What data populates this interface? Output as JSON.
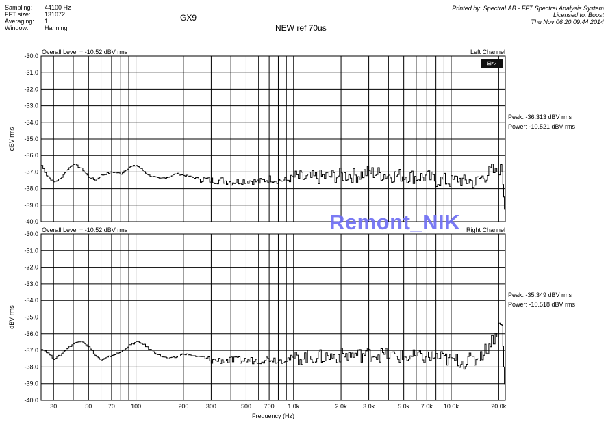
{
  "header": {
    "info": [
      {
        "label": "Sampling:",
        "value": "44100 Hz"
      },
      {
        "label": "FFT size:",
        "value": "131072"
      },
      {
        "label": "Averaging:",
        "value": "1"
      },
      {
        "label": "Window:",
        "value": "Hanning"
      }
    ],
    "title": "GX9",
    "subtitle": "NEW ref 70us",
    "printed_by": "Printed by: SpectraLAB - FFT Spectral Analysis System",
    "licensed_to": "Licensed to: Boost",
    "timestamp": "Thu Nov 06 20:09:44 2014"
  },
  "watermark": "Remont_NIK",
  "legend_icon": "spectrum-analyzer-icon",
  "chart_data": [
    {
      "type": "line",
      "channel_label": "Left Channel",
      "overall_level": "Overall Level = -10.52 dBV rms",
      "peak": "Peak: -36.313 dBV rms",
      "power": "Power: -10.521 dBV rms",
      "xlabel": "Frequency (Hz)",
      "ylabel": "dBV rms",
      "xscale": "log",
      "xlim": [
        25,
        22050
      ],
      "ylim": [
        -40,
        -30
      ],
      "grid": true,
      "yticks": [
        "-30.0",
        "-31.0",
        "-32.0",
        "-33.0",
        "-34.0",
        "-35.0",
        "-36.0",
        "-37.0",
        "-38.0",
        "-39.0",
        "-40.0"
      ],
      "x": [
        25,
        27,
        30,
        33,
        36,
        40,
        45,
        50,
        55,
        60,
        70,
        80,
        90,
        100,
        110,
        120,
        140,
        160,
        180,
        200,
        250,
        300,
        350,
        400,
        500,
        600,
        700,
        800,
        900,
        1000,
        1200,
        1500,
        2000,
        2500,
        3000,
        4000,
        5000,
        6000,
        7000,
        8000,
        9000,
        10000,
        11000,
        12000,
        13000,
        14000,
        15000,
        16000,
        17000,
        18000,
        19000,
        20000,
        21000,
        21500,
        22000
      ],
      "y": [
        -36.6,
        -37.2,
        -37.6,
        -37.4,
        -36.9,
        -36.5,
        -36.8,
        -37.3,
        -37.5,
        -37.2,
        -37.0,
        -37.1,
        -36.7,
        -36.6,
        -36.9,
        -37.2,
        -37.4,
        -37.3,
        -37.1,
        -37.2,
        -37.4,
        -37.5,
        -37.5,
        -37.6,
        -37.5,
        -37.6,
        -37.4,
        -37.5,
        -37.5,
        -37.3,
        -37.4,
        -37.3,
        -37.2,
        -37.2,
        -37.0,
        -37.2,
        -37.2,
        -37.3,
        -37.3,
        -37.5,
        -37.5,
        -37.6,
        -37.4,
        -37.6,
        -37.5,
        -37.7,
        -37.4,
        -37.3,
        -37.1,
        -36.9,
        -37.1,
        -36.8,
        -37.0,
        -38.5,
        -40.0
      ]
    },
    {
      "type": "line",
      "channel_label": "Right Channel",
      "overall_level": "Overall Level = -10.52 dBV rms",
      "peak": "Peak: -35.349 dBV rms",
      "power": "Power: -10.518 dBV rms",
      "xlabel": "Frequency (Hz)",
      "ylabel": "dBV rms",
      "xscale": "log",
      "xlim": [
        25,
        22050
      ],
      "ylim": [
        -40,
        -30
      ],
      "grid": true,
      "yticks": [
        "-30.0",
        "-31.0",
        "-32.0",
        "-33.0",
        "-34.0",
        "-35.0",
        "-36.0",
        "-37.0",
        "-38.0",
        "-39.0",
        "-40.0"
      ],
      "x": [
        25,
        27,
        30,
        33,
        36,
        40,
        45,
        50,
        55,
        60,
        70,
        80,
        90,
        100,
        110,
        120,
        140,
        160,
        180,
        200,
        250,
        300,
        350,
        400,
        500,
        600,
        700,
        800,
        900,
        1000,
        1200,
        1500,
        2000,
        2500,
        3000,
        4000,
        5000,
        6000,
        7000,
        8000,
        9000,
        10000,
        11000,
        12000,
        13000,
        14000,
        15000,
        16000,
        17000,
        18000,
        19000,
        20000,
        21000,
        21500,
        22000
      ],
      "y": [
        -36.9,
        -37.1,
        -37.5,
        -37.3,
        -36.9,
        -36.6,
        -36.4,
        -36.8,
        -37.3,
        -37.6,
        -37.3,
        -37.1,
        -36.7,
        -36.5,
        -36.6,
        -36.9,
        -37.3,
        -37.5,
        -37.4,
        -37.2,
        -37.4,
        -37.6,
        -37.6,
        -37.6,
        -37.6,
        -37.6,
        -37.5,
        -37.6,
        -37.5,
        -37.5,
        -37.4,
        -37.4,
        -37.3,
        -37.3,
        -37.2,
        -37.3,
        -37.4,
        -37.4,
        -37.4,
        -37.4,
        -37.5,
        -37.6,
        -37.6,
        -37.7,
        -37.6,
        -37.6,
        -37.3,
        -37.1,
        -36.8,
        -36.4,
        -36.0,
        -35.6,
        -35.5,
        -38.0,
        -40.0
      ]
    }
  ],
  "x_tick_labels": [
    {
      "f": 30,
      "label": "30"
    },
    {
      "f": 50,
      "label": "50"
    },
    {
      "f": 70,
      "label": "70"
    },
    {
      "f": 100,
      "label": "100"
    },
    {
      "f": 200,
      "label": "200"
    },
    {
      "f": 300,
      "label": "300"
    },
    {
      "f": 500,
      "label": "500"
    },
    {
      "f": 700,
      "label": "700"
    },
    {
      "f": 1000,
      "label": "1.0k"
    },
    {
      "f": 2000,
      "label": "2.0k"
    },
    {
      "f": 3000,
      "label": "3.0k"
    },
    {
      "f": 5000,
      "label": "5.0k"
    },
    {
      "f": 7000,
      "label": "7.0k"
    },
    {
      "f": 10000,
      "label": "10.0k"
    },
    {
      "f": 20000,
      "label": "20.0k"
    }
  ]
}
